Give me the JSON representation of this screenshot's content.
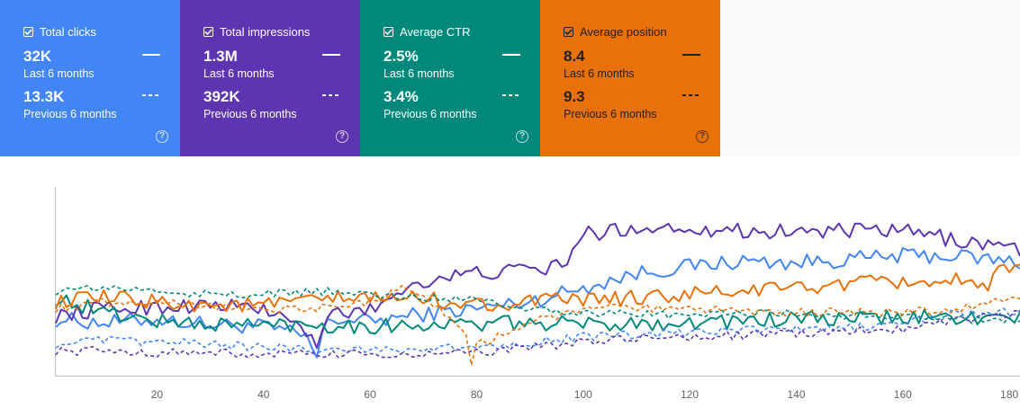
{
  "metrics": [
    {
      "label": "Total clicks",
      "current_value": "32K",
      "current_period": "Last 6 months",
      "previous_value": "13.3K",
      "previous_period": "Previous 6 months",
      "color": "#4285f4",
      "selected": true
    },
    {
      "label": "Total impressions",
      "current_value": "1.3M",
      "current_period": "Last 6 months",
      "previous_value": "392K",
      "previous_period": "Previous 6 months",
      "color": "#5e35b1",
      "selected": true
    },
    {
      "label": "Average CTR",
      "current_value": "2.5%",
      "current_period": "Last 6 months",
      "previous_value": "3.4%",
      "previous_period": "Previous 6 months",
      "color": "#00897b",
      "selected": true
    },
    {
      "label": "Average position",
      "current_value": "8.4",
      "current_period": "Last 6 months",
      "previous_value": "9.3",
      "previous_period": "Previous 6 months",
      "color": "#e8710a",
      "selected": true
    }
  ],
  "chart_data": {
    "type": "line",
    "x_ticks": [
      20,
      40,
      60,
      80,
      100,
      120,
      140,
      160,
      180
    ],
    "xlim": [
      1,
      182
    ],
    "grid": false,
    "legend": "metric cards above chart",
    "series": [
      {
        "metric": "Total clicks",
        "period": "Last 6 months",
        "style": "solid",
        "color": "#4285f4",
        "keypoints": [
          [
            1,
            0.3
          ],
          [
            10,
            0.28
          ],
          [
            20,
            0.3
          ],
          [
            30,
            0.27
          ],
          [
            40,
            0.26
          ],
          [
            48,
            0.2
          ],
          [
            50,
            0.08
          ],
          [
            52,
            0.3
          ],
          [
            60,
            0.29
          ],
          [
            70,
            0.33
          ],
          [
            80,
            0.36
          ],
          [
            90,
            0.4
          ],
          [
            100,
            0.48
          ],
          [
            110,
            0.56
          ],
          [
            120,
            0.6
          ],
          [
            130,
            0.63
          ],
          [
            140,
            0.62
          ],
          [
            150,
            0.64
          ],
          [
            160,
            0.66
          ],
          [
            170,
            0.66
          ],
          [
            182,
            0.62
          ]
        ]
      },
      {
        "metric": "Total impressions",
        "period": "Last 6 months",
        "style": "solid",
        "color": "#5e35b1",
        "keypoints": [
          [
            1,
            0.32
          ],
          [
            10,
            0.36
          ],
          [
            20,
            0.37
          ],
          [
            30,
            0.38
          ],
          [
            40,
            0.36
          ],
          [
            48,
            0.24
          ],
          [
            50,
            0.1
          ],
          [
            52,
            0.33
          ],
          [
            60,
            0.35
          ],
          [
            66,
            0.47
          ],
          [
            70,
            0.52
          ],
          [
            80,
            0.56
          ],
          [
            90,
            0.58
          ],
          [
            96,
            0.6
          ],
          [
            100,
            0.78
          ],
          [
            110,
            0.82
          ],
          [
            120,
            0.82
          ],
          [
            130,
            0.8
          ],
          [
            140,
            0.8
          ],
          [
            150,
            0.8
          ],
          [
            160,
            0.8
          ],
          [
            170,
            0.75
          ],
          [
            182,
            0.7
          ]
        ]
      },
      {
        "metric": "Average CTR",
        "period": "Last 6 months",
        "style": "solid",
        "color": "#00897b",
        "keypoints": [
          [
            1,
            0.42
          ],
          [
            10,
            0.34
          ],
          [
            20,
            0.29
          ],
          [
            30,
            0.27
          ],
          [
            40,
            0.27
          ],
          [
            50,
            0.27
          ],
          [
            60,
            0.26
          ],
          [
            70,
            0.27
          ],
          [
            80,
            0.27
          ],
          [
            90,
            0.28
          ],
          [
            100,
            0.27
          ],
          [
            110,
            0.28
          ],
          [
            120,
            0.28
          ],
          [
            130,
            0.29
          ],
          [
            140,
            0.3
          ],
          [
            150,
            0.3
          ],
          [
            160,
            0.31
          ],
          [
            170,
            0.31
          ],
          [
            182,
            0.3
          ]
        ]
      },
      {
        "metric": "Average position",
        "period": "Last 6 months",
        "style": "solid",
        "color": "#e8710a",
        "keypoints": [
          [
            1,
            0.4
          ],
          [
            10,
            0.42
          ],
          [
            20,
            0.4
          ],
          [
            30,
            0.38
          ],
          [
            40,
            0.38
          ],
          [
            50,
            0.41
          ],
          [
            60,
            0.42
          ],
          [
            70,
            0.42
          ],
          [
            80,
            0.38
          ],
          [
            90,
            0.4
          ],
          [
            100,
            0.41
          ],
          [
            110,
            0.42
          ],
          [
            120,
            0.44
          ],
          [
            130,
            0.46
          ],
          [
            140,
            0.48
          ],
          [
            150,
            0.5
          ],
          [
            160,
            0.51
          ],
          [
            170,
            0.52
          ],
          [
            176,
            0.45
          ],
          [
            178,
            0.58
          ],
          [
            182,
            0.58
          ]
        ]
      },
      {
        "metric": "Total clicks",
        "period": "Previous 6 months",
        "style": "dashed",
        "color": "#4285f4",
        "keypoints": [
          [
            1,
            0.16
          ],
          [
            10,
            0.18
          ],
          [
            20,
            0.17
          ],
          [
            30,
            0.16
          ],
          [
            40,
            0.14
          ],
          [
            50,
            0.13
          ],
          [
            60,
            0.13
          ],
          [
            70,
            0.13
          ],
          [
            80,
            0.14
          ],
          [
            90,
            0.17
          ],
          [
            100,
            0.2
          ],
          [
            110,
            0.21
          ],
          [
            120,
            0.22
          ],
          [
            130,
            0.24
          ],
          [
            140,
            0.24
          ],
          [
            150,
            0.25
          ],
          [
            160,
            0.28
          ],
          [
            170,
            0.33
          ],
          [
            182,
            0.34
          ]
        ]
      },
      {
        "metric": "Total impressions",
        "period": "Previous 6 months",
        "style": "dashed",
        "color": "#5e35b1",
        "keypoints": [
          [
            1,
            0.12
          ],
          [
            10,
            0.12
          ],
          [
            20,
            0.11
          ],
          [
            30,
            0.11
          ],
          [
            40,
            0.1
          ],
          [
            50,
            0.1
          ],
          [
            60,
            0.1
          ],
          [
            70,
            0.1
          ],
          [
            80,
            0.11
          ],
          [
            90,
            0.14
          ],
          [
            100,
            0.17
          ],
          [
            110,
            0.19
          ],
          [
            120,
            0.2
          ],
          [
            130,
            0.21
          ],
          [
            140,
            0.22
          ],
          [
            150,
            0.23
          ],
          [
            160,
            0.25
          ],
          [
            170,
            0.3
          ],
          [
            182,
            0.34
          ]
        ]
      },
      {
        "metric": "Average CTR",
        "period": "Previous 6 months",
        "style": "dashed",
        "color": "#00897b",
        "keypoints": [
          [
            1,
            0.46
          ],
          [
            10,
            0.48
          ],
          [
            20,
            0.46
          ],
          [
            30,
            0.44
          ],
          [
            40,
            0.44
          ],
          [
            50,
            0.46
          ],
          [
            60,
            0.44
          ],
          [
            70,
            0.42
          ],
          [
            80,
            0.42
          ],
          [
            90,
            0.36
          ],
          [
            100,
            0.34
          ],
          [
            110,
            0.33
          ],
          [
            120,
            0.32
          ],
          [
            130,
            0.34
          ],
          [
            140,
            0.33
          ],
          [
            150,
            0.32
          ],
          [
            160,
            0.32
          ],
          [
            170,
            0.3
          ],
          [
            182,
            0.29
          ]
        ]
      },
      {
        "metric": "Average position",
        "period": "Previous 6 months",
        "style": "dashed",
        "color": "#e8710a",
        "keypoints": [
          [
            1,
            0.36
          ],
          [
            10,
            0.4
          ],
          [
            20,
            0.4
          ],
          [
            30,
            0.38
          ],
          [
            40,
            0.36
          ],
          [
            50,
            0.36
          ],
          [
            60,
            0.4
          ],
          [
            65,
            0.48
          ],
          [
            70,
            0.44
          ],
          [
            78,
            0.22
          ],
          [
            79,
            0.03
          ],
          [
            80,
            0.15
          ],
          [
            90,
            0.28
          ],
          [
            100,
            0.36
          ],
          [
            110,
            0.36
          ],
          [
            120,
            0.35
          ],
          [
            130,
            0.35
          ],
          [
            140,
            0.34
          ],
          [
            150,
            0.34
          ],
          [
            160,
            0.34
          ],
          [
            170,
            0.36
          ],
          [
            182,
            0.42
          ]
        ]
      }
    ]
  }
}
